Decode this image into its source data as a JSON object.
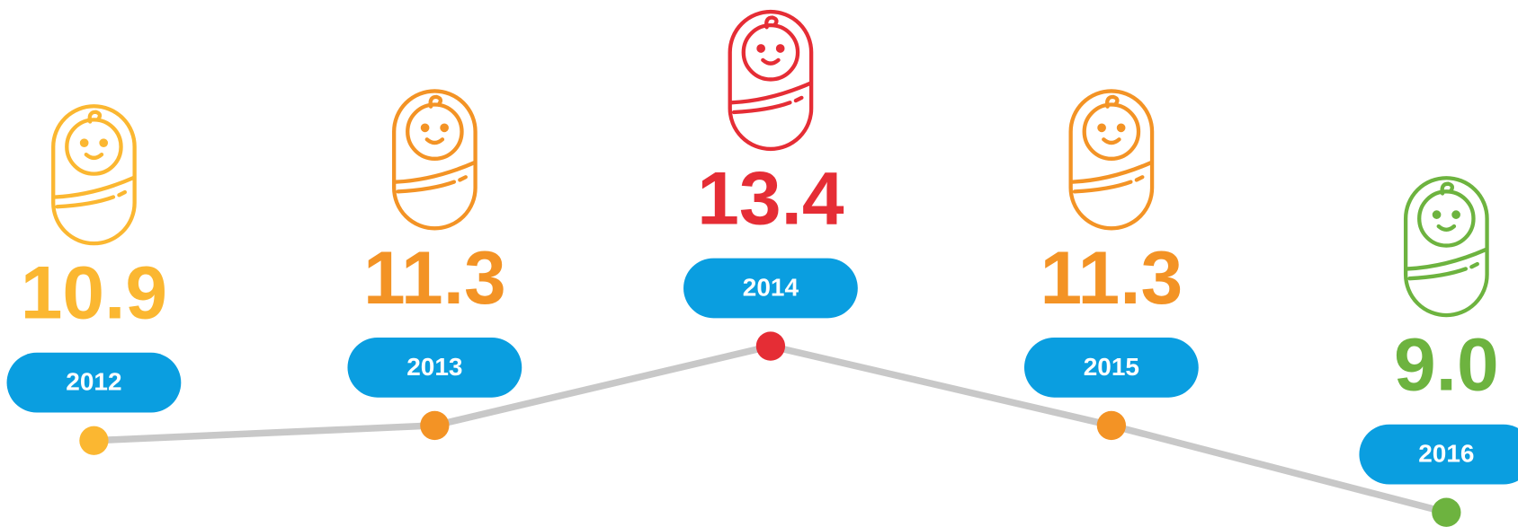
{
  "chart_data": {
    "type": "line",
    "categories": [
      "2012",
      "2013",
      "2014",
      "2015",
      "2016"
    ],
    "values": [
      10.9,
      11.3,
      13.4,
      11.3,
      9.0
    ],
    "value_labels": [
      "10.9",
      "11.3",
      "13.4",
      "11.3",
      "9.0"
    ],
    "colors": [
      "#fbb731",
      "#f39325",
      "#e52d35",
      "#f39325",
      "#6db33f"
    ],
    "line_color": "#c8c8c8",
    "label_color": "#0a9ee0"
  }
}
